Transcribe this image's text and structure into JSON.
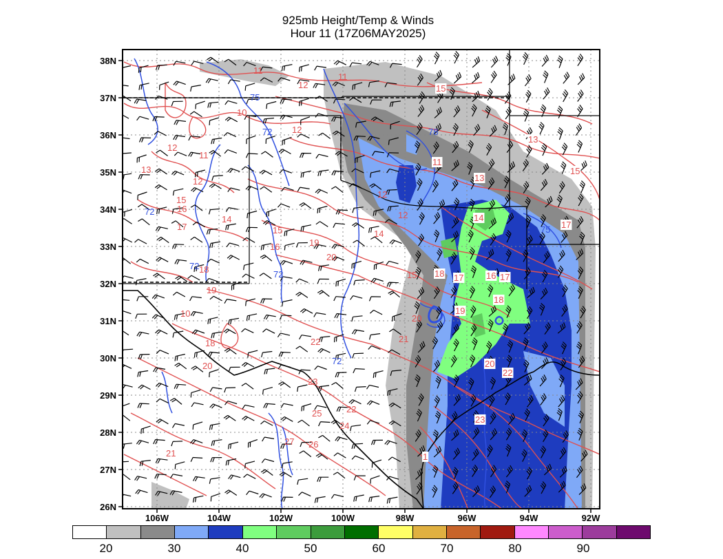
{
  "title": {
    "line1": "925mb Height/Temp & Winds",
    "line2": "Hour 11 (17Z06MAY2025)"
  },
  "lat_labels": [
    "38N",
    "37N",
    "36N",
    "35N",
    "34N",
    "33N",
    "32N",
    "31N",
    "30N",
    "29N",
    "28N",
    "27N",
    "26N"
  ],
  "lon_labels": [
    "106W",
    "104W",
    "102W",
    "100W",
    "98W",
    "96W",
    "94W",
    "92W"
  ],
  "colorbar": {
    "colors": [
      "#ffffff",
      "#c0c0c0",
      "#8a8a8a",
      "#7fa9f7",
      "#1e3cbf",
      "#80ff80",
      "#5fcc5f",
      "#3c9c3c",
      "#006e00",
      "#ffff66",
      "#e0b040",
      "#c8642a",
      "#a01a10",
      "#ff88ff",
      "#cc5ccc",
      "#9c3c9c",
      "#6e0a6e"
    ],
    "labels": [
      "20",
      "30",
      "40",
      "50",
      "60",
      "70",
      "80",
      "90"
    ]
  },
  "temp_labels": [
    "11",
    "12",
    "15",
    "10",
    "11",
    "12",
    "11",
    "12",
    "13",
    "15",
    "16",
    "17",
    "12",
    "14",
    "15",
    "16",
    "18",
    "19",
    "20",
    "15",
    "17",
    "18",
    "19",
    "20",
    "21",
    "22",
    "23",
    "24",
    "25",
    "26",
    "27",
    "22",
    "20",
    "21",
    "18",
    "14",
    "11",
    "12",
    "13",
    "14",
    "15",
    "16",
    "17",
    "18",
    "19",
    "20",
    "22",
    "23",
    "17",
    "1",
    "10",
    "12",
    "13"
  ],
  "height_labels": [
    "75",
    "72",
    "72",
    "72",
    "72",
    "72",
    "78",
    "75"
  ]
}
